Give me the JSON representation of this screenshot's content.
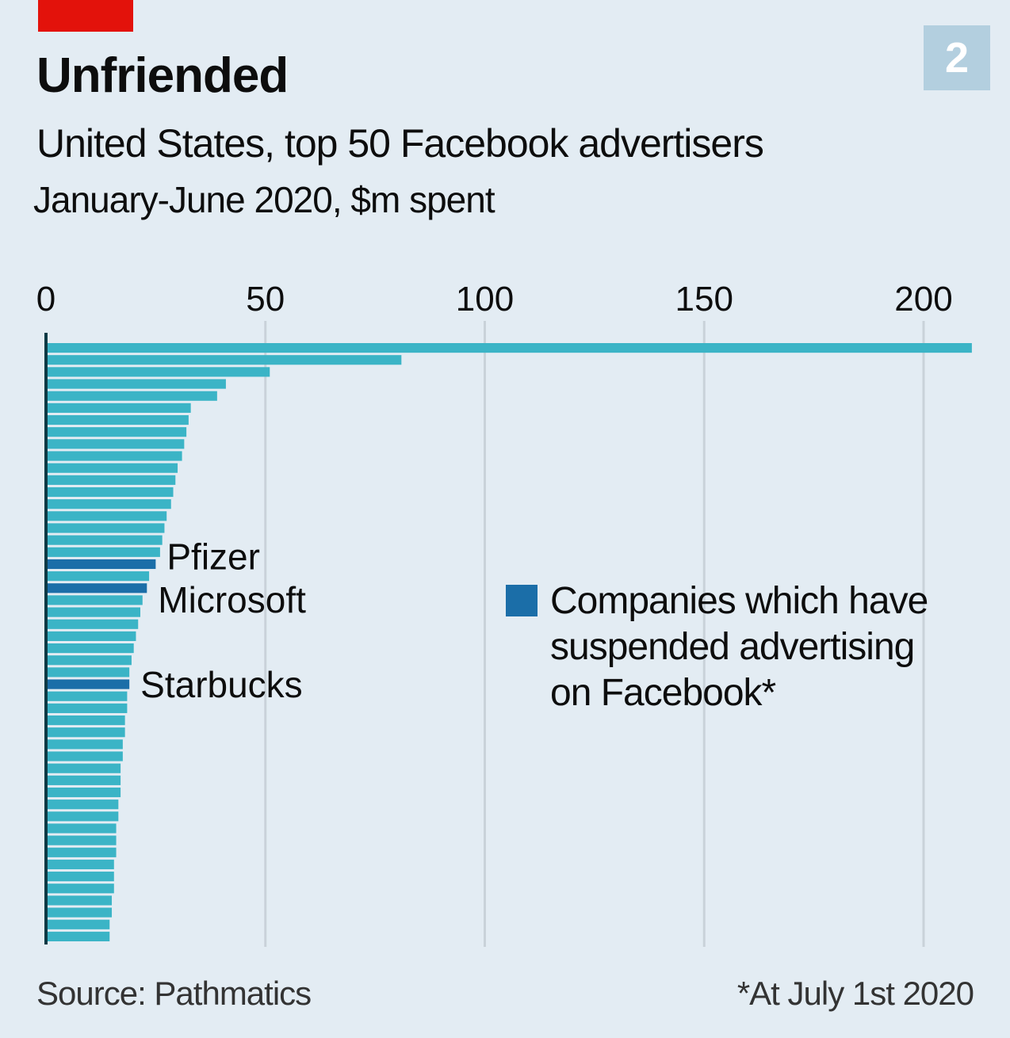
{
  "header": {
    "badge_number": "2",
    "title": "Unfriended",
    "subtitle": "United States, top 50 Facebook advertisers",
    "unit_line": "January-June 2020, $m spent"
  },
  "legend": {
    "label": "Companies which have suspended advertising on Facebook*",
    "color": "#1b6ea8"
  },
  "footer": {
    "source": "Source: Pathmatics",
    "note": "*At July 1st 2020"
  },
  "colors": {
    "bar": "#3bb4c6",
    "highlight": "#1b6ea8",
    "brand_red": "#e3120b",
    "background": "#e3ecf3"
  },
  "chart_data": {
    "type": "bar",
    "orientation": "horizontal",
    "title": "Unfriended",
    "subtitle": "United States, top 50 Facebook advertisers",
    "xlabel": "January-June 2020, $m spent",
    "ylabel": "",
    "xlim": [
      0,
      215
    ],
    "x_ticks": [
      0,
      50,
      100,
      150,
      200
    ],
    "grid": true,
    "legend_position": "right-middle",
    "values": [
      211,
      81,
      51,
      41,
      39,
      33,
      32.5,
      32,
      31.5,
      31,
      30,
      29.5,
      29,
      28.5,
      27.5,
      27,
      26.5,
      26,
      25,
      23.5,
      23,
      22,
      21.5,
      21,
      20.5,
      20,
      19.5,
      19,
      19,
      18.5,
      18.5,
      18,
      18,
      17.5,
      17.5,
      17,
      17,
      17,
      16.5,
      16.5,
      16,
      16,
      16,
      15.5,
      15.5,
      15.5,
      15,
      15,
      14.5,
      14.5
    ],
    "highlighted": [
      {
        "rank": 19,
        "label": "Pfizer"
      },
      {
        "rank": 21,
        "label": "Microsoft"
      },
      {
        "rank": 29,
        "label": "Starbucks"
      }
    ],
    "highlight_legend": "Companies which have suspended advertising on Facebook*",
    "source": "Source: Pathmatics",
    "footnote": "*At July 1st 2020"
  }
}
